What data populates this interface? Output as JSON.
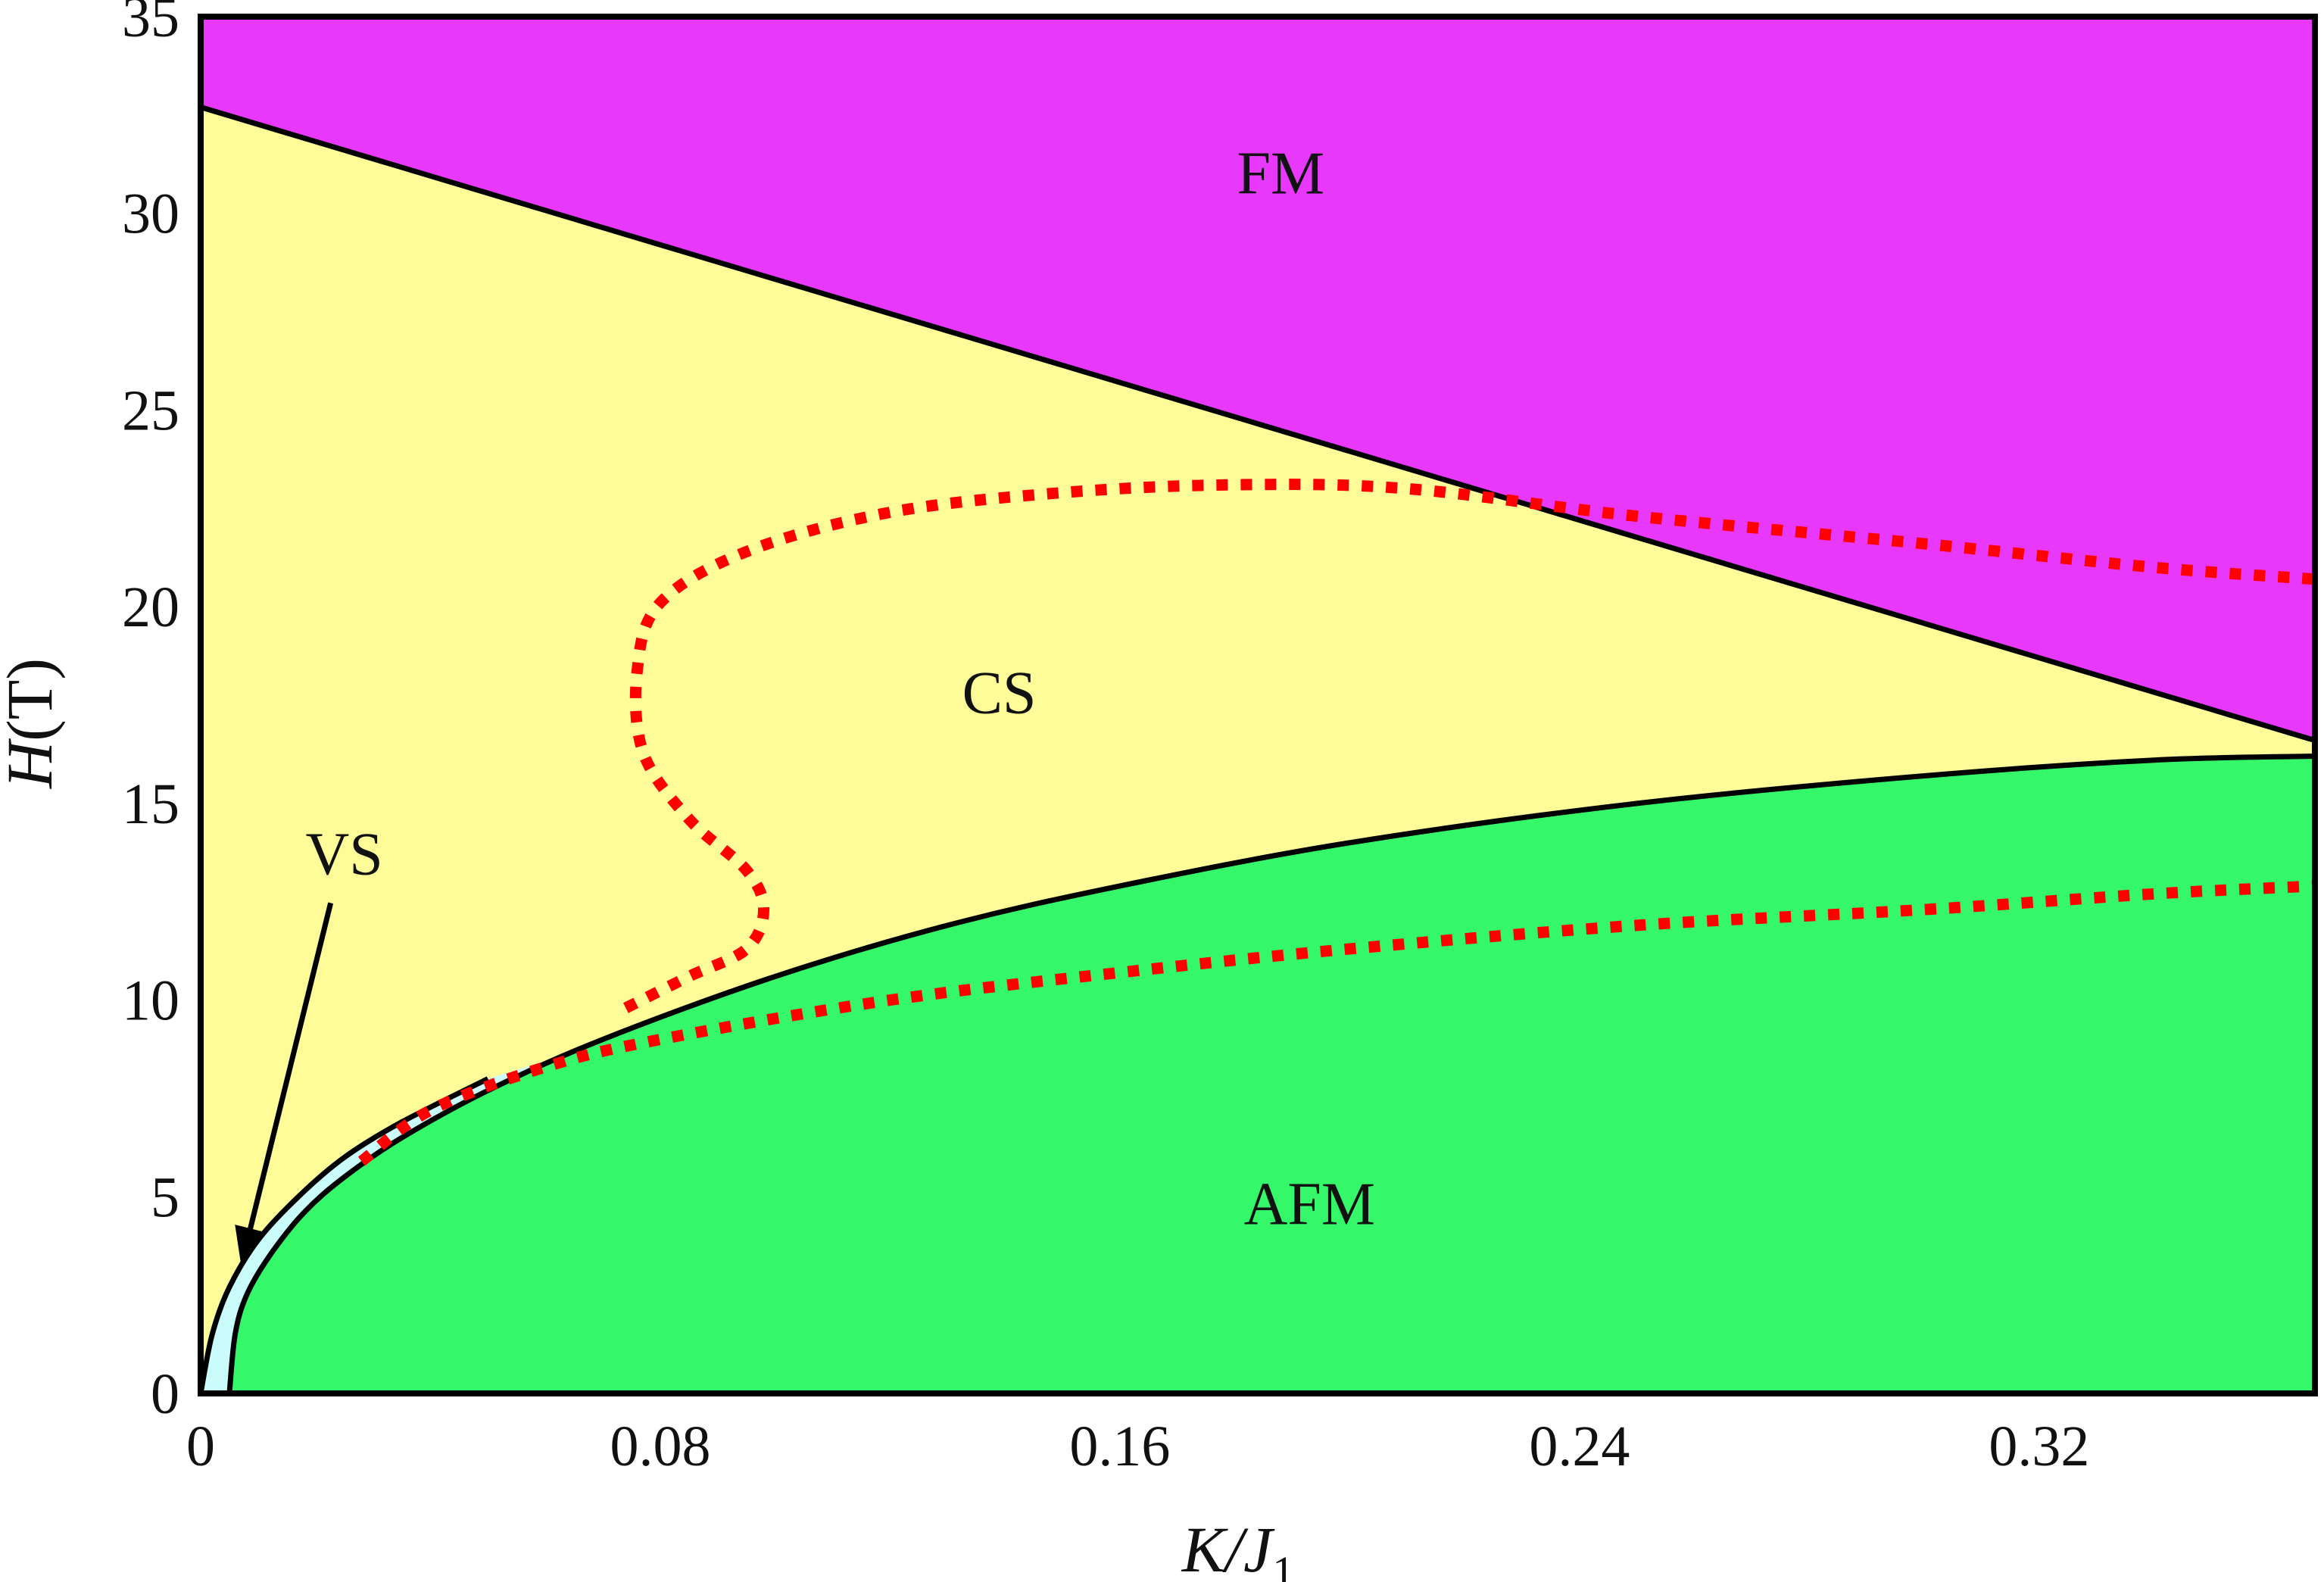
{
  "chart_data": {
    "type": "area",
    "title": "",
    "xlabel": "K/J",
    "xlabel_subscript": "1",
    "ylabel": "H",
    "ylabel_unit": "(T)",
    "xlim": [
      0,
      0.368
    ],
    "ylim": [
      0,
      35
    ],
    "x_ticks": [
      0,
      0.08,
      0.16,
      0.24,
      0.32
    ],
    "x_tick_labels": [
      "0",
      "0.08",
      "0.16",
      "0.24",
      "0.32"
    ],
    "y_ticks": [
      0,
      5,
      10,
      15,
      20,
      25,
      30,
      35
    ],
    "y_tick_labels": [
      "0",
      "5",
      "10",
      "15",
      "20",
      "25",
      "30",
      "35"
    ],
    "grid": false,
    "colors": {
      "FM": "#e838fc",
      "CS": "#fdfc98",
      "AFM": "#34f86a",
      "VS": "#cafcfc",
      "boundary": "#000000",
      "dotted": "#ff0000"
    },
    "regions": [
      {
        "name": "FM",
        "label_at": {
          "x": 0.188,
          "y": 30.5
        }
      },
      {
        "name": "CS",
        "label_at": {
          "x": 0.139,
          "y": 17.3
        }
      },
      {
        "name": "AFM",
        "label_at": {
          "x": 0.193,
          "y": 4.3
        }
      },
      {
        "name": "VS",
        "label_at": {
          "x": 0.025,
          "y": 13.2
        },
        "arrow_to": {
          "x": 0.007,
          "y": 3.3
        }
      }
    ],
    "series": [
      {
        "role": "FM-CS boundary",
        "style": "solid",
        "x": [
          0,
          0.368
        ],
        "y": [
          32.7,
          16.6
        ]
      },
      {
        "role": "CS-AFM boundary",
        "style": "solid",
        "x": [
          0.005,
          0.006,
          0.008,
          0.012,
          0.018,
          0.025,
          0.035,
          0.05,
          0.07,
          0.1,
          0.13,
          0.16,
          0.2,
          0.25,
          0.3,
          0.34,
          0.368
        ],
        "y": [
          0,
          1.5,
          2.5,
          3.5,
          4.6,
          5.5,
          6.5,
          7.7,
          9.0,
          10.6,
          11.9,
          12.9,
          14.0,
          15.0,
          15.7,
          16.1,
          16.2
        ]
      },
      {
        "role": "VS-CS boundary",
        "style": "solid",
        "x": [
          0,
          0.002,
          0.005,
          0.01,
          0.017,
          0.025,
          0.035,
          0.05
        ],
        "y": [
          0,
          1.5,
          2.7,
          3.9,
          5.0,
          6.0,
          6.9,
          8.0
        ]
      },
      {
        "role": "red dotted upper",
        "style": "dotted",
        "x": [
          0.074,
          0.085,
          0.095,
          0.098,
          0.095,
          0.085,
          0.077,
          0.076,
          0.08,
          0.095,
          0.12,
          0.15,
          0.18,
          0.21,
          0.25,
          0.3,
          0.34,
          0.368
        ],
        "y": [
          9.8,
          10.6,
          11.3,
          12.3,
          13.3,
          14.6,
          16.3,
          18.4,
          20.1,
          21.4,
          22.4,
          22.9,
          23.1,
          23.0,
          22.3,
          21.6,
          21.0,
          20.7
        ]
      },
      {
        "role": "red dotted lower",
        "style": "dotted",
        "x": [
          0.028,
          0.04,
          0.06,
          0.08,
          0.12,
          0.16,
          0.2,
          0.25,
          0.3,
          0.34,
          0.368
        ],
        "y": [
          5.9,
          7.2,
          8.3,
          9.0,
          10.0,
          10.7,
          11.3,
          11.9,
          12.3,
          12.7,
          12.9
        ]
      }
    ]
  }
}
